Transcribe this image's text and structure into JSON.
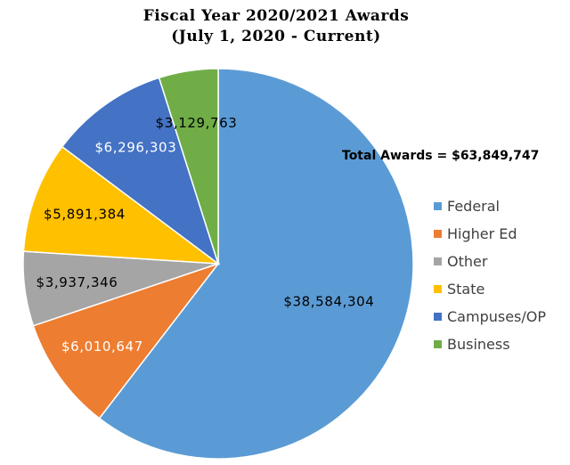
{
  "chart_data": {
    "type": "pie",
    "title": "Fiscal Year 2020/2021 Awards",
    "subtitle": "(July 1, 2020 - Current)",
    "total": {
      "label": "Total Awards = ",
      "value": "$63,849,747"
    },
    "legend_position": "right",
    "slices": [
      {
        "name": "Federal",
        "value": 38584304,
        "label": "$38,584,304",
        "color": "#5B9BD5",
        "label_color": "#000000"
      },
      {
        "name": "Higher Ed",
        "value": 6010647,
        "label": "$6,010,647",
        "color": "#ED7D31",
        "label_color": "#ffffff"
      },
      {
        "name": "Other",
        "value": 3937346,
        "label": "$3,937,346",
        "color": "#A5A5A5",
        "label_color": "#000000"
      },
      {
        "name": "State",
        "value": 5891384,
        "label": "$5,891,384",
        "color": "#FFC000",
        "label_color": "#000000"
      },
      {
        "name": "Campuses/OP",
        "value": 6296303,
        "label": "$6,296,303",
        "color": "#4472C4",
        "label_color": "#ffffff"
      },
      {
        "name": "Business",
        "value": 3129763,
        "label": "$3,129,763",
        "color": "#70AD47",
        "label_color": "#000000"
      }
    ]
  }
}
